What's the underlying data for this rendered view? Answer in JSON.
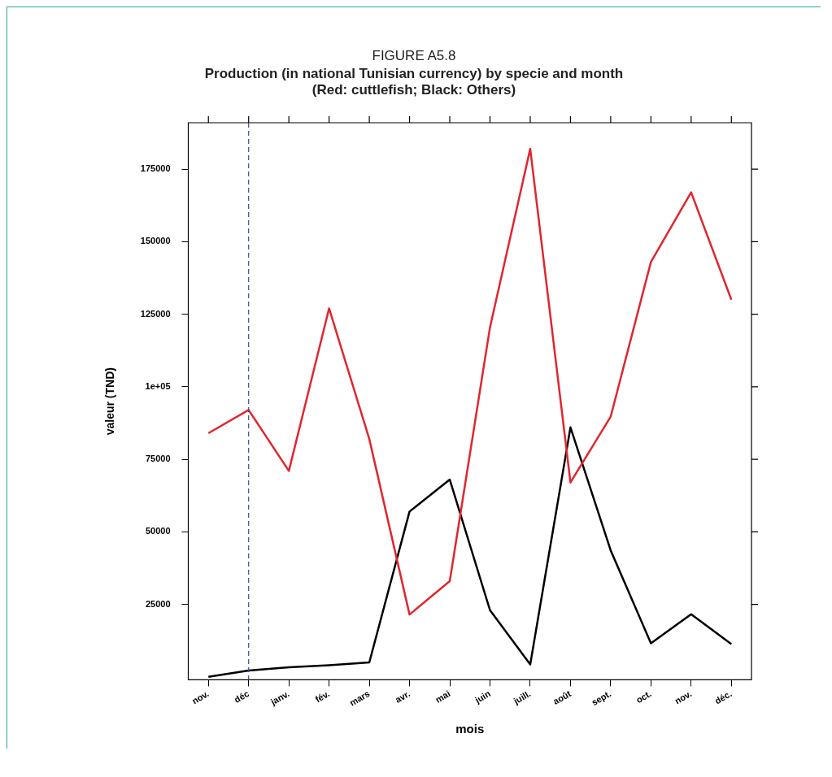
{
  "chart_data": {
    "type": "line",
    "title": "FIGURE A5.8",
    "subtitle": "Production (in national Tunisian currency) by specie and month\n(Red: cuttlefish; Black: Others)",
    "xlabel": "mois",
    "ylabel": "valeur (TND)",
    "categories": [
      "nov.",
      "déc",
      "janv.",
      "fév.",
      "mars",
      "avr.",
      "mai",
      "juin",
      "juill.",
      "août",
      "sept.",
      "oct.",
      "nov.",
      "déc."
    ],
    "series": [
      {
        "color": "#e0262e",
        "values": [
          84000,
          92000,
          71000,
          127000,
          82000,
          21500,
          33000,
          120500,
          182000,
          67000,
          89700,
          143000,
          167000,
          130000
        ]
      },
      {
        "color": "#000000",
        "values": [
          0,
          2200,
          3300,
          4000,
          5000,
          57000,
          68000,
          23000,
          4300,
          86000,
          43600,
          11600,
          21600,
          11300
        ]
      }
    ],
    "ylim": [
      -1000,
      191000
    ],
    "yticks": [
      25000,
      50000,
      75000,
      {
        "value": 100000,
        "label": "1e+05"
      },
      125000,
      150000,
      175000
    ],
    "ref_lines": [
      {
        "axis": "x",
        "value": "déc",
        "color": "#3a4a9a",
        "line_style": "dashed"
      }
    ],
    "grid": false,
    "legend": false,
    "marker": "none",
    "line_style": "solid"
  }
}
